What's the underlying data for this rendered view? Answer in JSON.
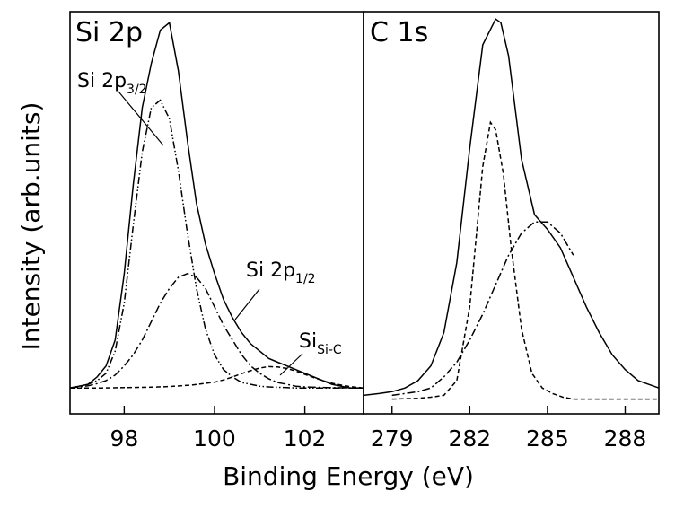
{
  "chart_data": {
    "type": "line",
    "xlabel": "Binding Energy (eV)",
    "ylabel": "Intensity (arb.units)",
    "panels": [
      {
        "title": "Si 2p",
        "xlim": [
          96.8,
          103.3
        ],
        "ylim": [
          -0.07,
          1.02
        ],
        "xticks": [
          98,
          100,
          102
        ],
        "x_direction": "increasing",
        "series": [
          {
            "name": "",
            "role": "envelope",
            "style": "solid",
            "x": [
              96.8,
              97.0,
              97.2,
              97.4,
              97.6,
              97.8,
              98.0,
              98.2,
              98.4,
              98.6,
              98.8,
              99.0,
              99.2,
              99.4,
              99.6,
              99.8,
              100.0,
              100.2,
              100.4,
              100.6,
              100.8,
              101.0,
              101.2,
              101.4,
              101.6,
              101.8,
              102.0,
              102.2,
              102.4,
              102.6,
              102.8,
              103.0,
              103.3
            ],
            "y": [
              0.0,
              0.005,
              0.01,
              0.03,
              0.06,
              0.13,
              0.31,
              0.55,
              0.76,
              0.88,
              0.97,
              0.99,
              0.86,
              0.67,
              0.5,
              0.39,
              0.31,
              0.24,
              0.19,
              0.15,
              0.12,
              0.1,
              0.08,
              0.07,
              0.06,
              0.05,
              0.04,
              0.03,
              0.02,
              0.01,
              0.005,
              0.0,
              0.0
            ]
          },
          {
            "name": "Si 2p3/2",
            "role": "component",
            "style": "dash-dot-dot",
            "x": [
              96.8,
              97.0,
              97.2,
              97.4,
              97.6,
              97.8,
              98.0,
              98.2,
              98.4,
              98.6,
              98.8,
              99.0,
              99.2,
              99.4,
              99.6,
              99.8,
              100.0,
              100.2,
              100.4,
              100.6,
              100.8,
              101.0,
              101.2,
              101.4,
              101.6,
              101.8,
              102.0,
              102.5,
              103.3
            ],
            "y": [
              0.0,
              0.005,
              0.01,
              0.02,
              0.04,
              0.1,
              0.23,
              0.44,
              0.64,
              0.76,
              0.78,
              0.73,
              0.59,
              0.42,
              0.27,
              0.16,
              0.09,
              0.05,
              0.03,
              0.015,
              0.01,
              0.005,
              0.003,
              0.002,
              0.001,
              0.0,
              0.0,
              0.0,
              0.0
            ]
          },
          {
            "name": "Si 2p1/2",
            "role": "component",
            "style": "dash-dot",
            "x": [
              96.8,
              97.0,
              97.2,
              97.4,
              97.6,
              97.8,
              98.0,
              98.2,
              98.4,
              98.6,
              98.8,
              99.0,
              99.2,
              99.4,
              99.6,
              99.8,
              100.0,
              100.2,
              100.4,
              100.6,
              100.8,
              101.0,
              101.2,
              101.4,
              101.6,
              101.8,
              102.0,
              102.5,
              103.3
            ],
            "y": [
              0.0,
              0.003,
              0.006,
              0.012,
              0.02,
              0.035,
              0.06,
              0.09,
              0.13,
              0.18,
              0.23,
              0.27,
              0.3,
              0.31,
              0.3,
              0.27,
              0.22,
              0.17,
              0.13,
              0.09,
              0.06,
              0.04,
              0.025,
              0.015,
              0.01,
              0.005,
              0.003,
              0.001,
              0.0
            ]
          },
          {
            "name": "SiSi-C",
            "role": "component",
            "style": "dashed",
            "x": [
              96.8,
              97.5,
              98.0,
              98.5,
              99.0,
              99.5,
              100.0,
              100.2,
              100.4,
              100.6,
              100.8,
              101.0,
              101.2,
              101.4,
              101.6,
              101.8,
              102.0,
              102.2,
              102.4,
              102.6,
              102.8,
              103.0,
              103.3
            ],
            "y": [
              0.0,
              0.0,
              0.001,
              0.002,
              0.004,
              0.008,
              0.016,
              0.022,
              0.03,
              0.039,
              0.047,
              0.054,
              0.058,
              0.057,
              0.053,
              0.046,
              0.037,
              0.028,
              0.02,
              0.013,
              0.008,
              0.004,
              0.0
            ]
          }
        ]
      },
      {
        "title": "C 1s",
        "xlim": [
          277.9,
          289.3
        ],
        "ylim": [
          -0.07,
          1.02
        ],
        "xticks": [
          279,
          282,
          285,
          288
        ],
        "x_direction": "increasing",
        "series": [
          {
            "name": "",
            "role": "envelope",
            "style": "solid",
            "x": [
              277.9,
              278.5,
              279.0,
              279.5,
              280.0,
              280.5,
              281.0,
              281.5,
              282.0,
              282.5,
              283.0,
              283.2,
              283.5,
              284.0,
              284.5,
              285.0,
              285.5,
              286.0,
              286.5,
              287.0,
              287.5,
              288.0,
              288.5,
              289.3
            ],
            "y": [
              -0.02,
              -0.015,
              -0.01,
              0.0,
              0.02,
              0.06,
              0.15,
              0.34,
              0.65,
              0.93,
              1.0,
              0.99,
              0.9,
              0.62,
              0.47,
              0.43,
              0.38,
              0.3,
              0.22,
              0.15,
              0.09,
              0.05,
              0.02,
              0.0
            ]
          },
          {
            "name": "",
            "role": "component",
            "style": "dashed",
            "x": [
              279.0,
              280.0,
              280.5,
              281.0,
              281.5,
              282.0,
              282.5,
              282.8,
              283.0,
              283.3,
              283.6,
              284.0,
              284.4,
              284.8,
              285.2,
              285.6,
              286.0,
              287.0,
              288.0,
              289.3
            ],
            "y": [
              -0.03,
              -0.028,
              -0.025,
              -0.02,
              0.02,
              0.22,
              0.6,
              0.72,
              0.7,
              0.58,
              0.38,
              0.16,
              0.04,
              0.0,
              -0.015,
              -0.025,
              -0.03,
              -0.03,
              -0.03,
              -0.03
            ]
          },
          {
            "name": "",
            "role": "component",
            "style": "dash-dot",
            "x": [
              279.0,
              280.0,
              280.5,
              281.0,
              281.5,
              282.0,
              282.5,
              283.0,
              283.5,
              284.0,
              284.5,
              285.0,
              285.5,
              286.0
            ],
            "y": [
              -0.02,
              -0.01,
              0.0,
              0.03,
              0.07,
              0.13,
              0.2,
              0.28,
              0.36,
              0.42,
              0.45,
              0.45,
              0.42,
              0.36
            ]
          }
        ]
      }
    ],
    "annotations": [
      {
        "panel": 0,
        "text": "Si 2p",
        "subscript": "3/2"
      },
      {
        "panel": 0,
        "text": "Si 2p",
        "subscript": "1/2"
      },
      {
        "panel": 0,
        "text": "Si",
        "subscript": "Si-C"
      }
    ]
  }
}
